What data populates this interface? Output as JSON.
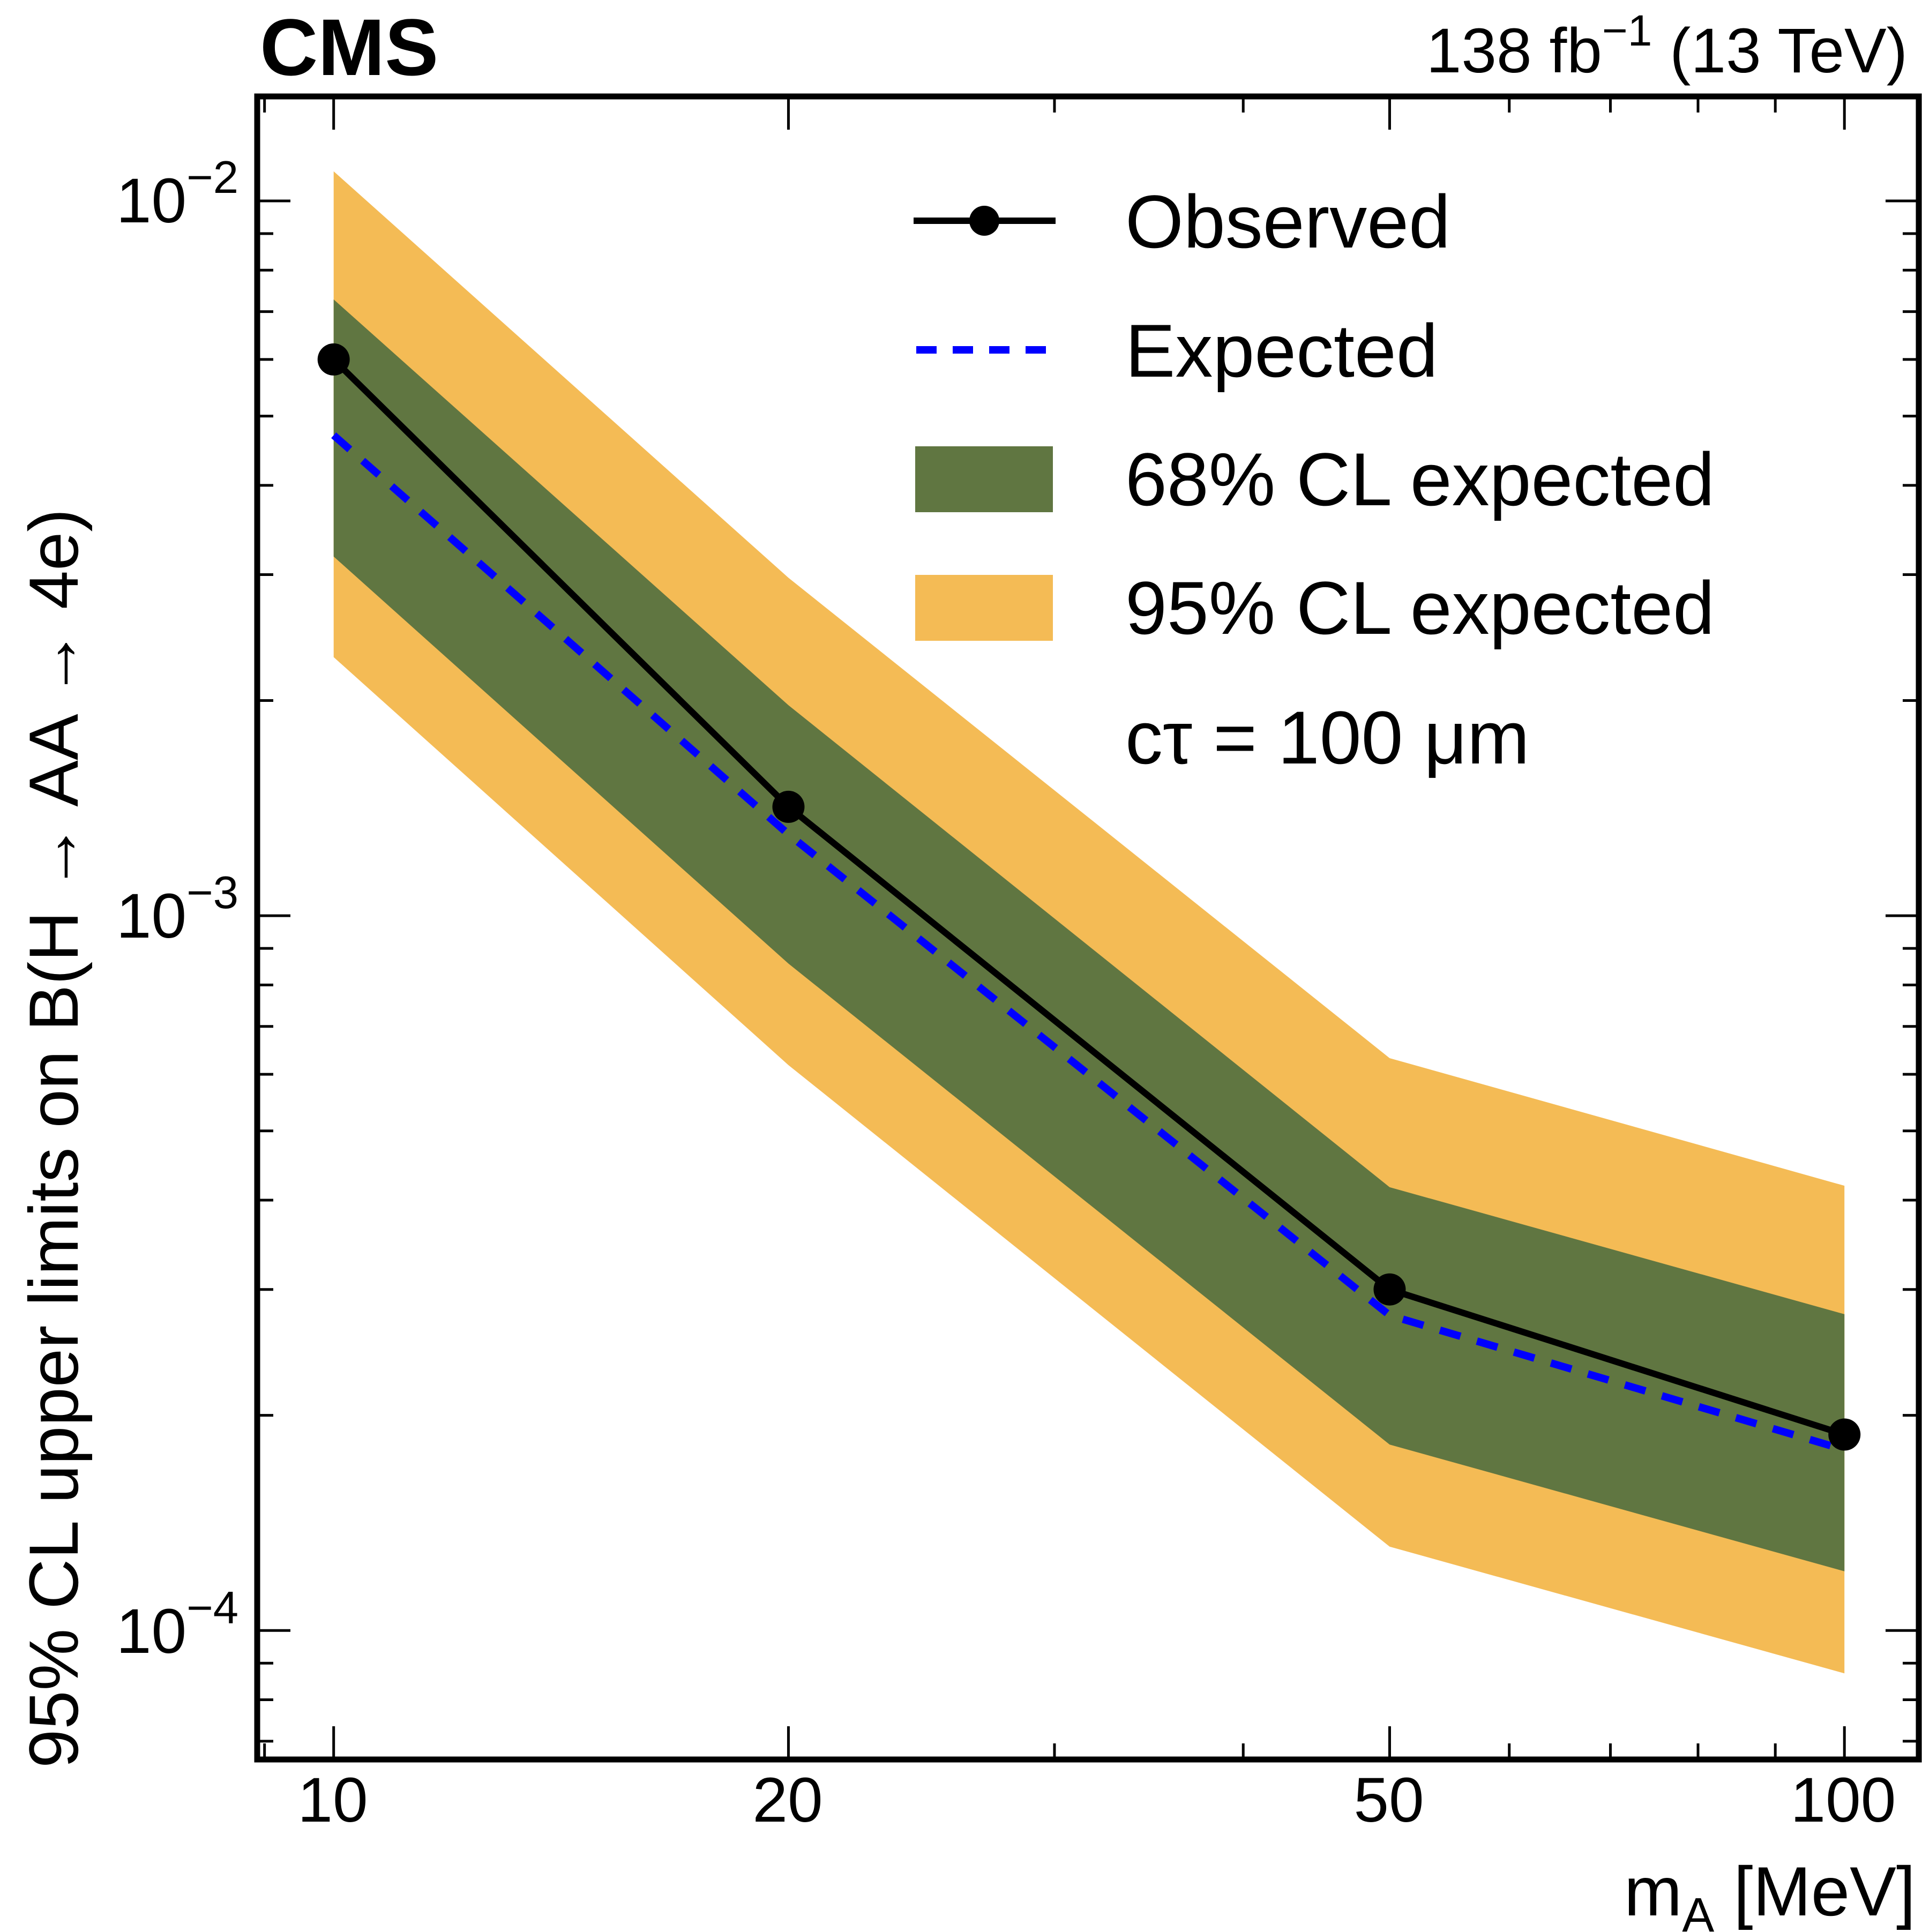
{
  "header": {
    "experiment": "CMS",
    "luminosity": "138 fb",
    "luminosity_exponent": "−1",
    "energy": "(13 TeV)"
  },
  "chart_data": {
    "type": "line",
    "title": "",
    "xlabel": "m_A [MeV]",
    "xlabel_main": "m",
    "xlabel_sub": "A",
    "xlabel_unit": "[MeV]",
    "ylabel": "95% CL upper limits on B(H → AA → 4e)",
    "xscale": "log",
    "yscale": "log",
    "xlim": [
      8.9,
      112
    ],
    "ylim": [
      6.6e-05,
      0.014
    ],
    "x_ticks": [
      10,
      20,
      50,
      100
    ],
    "x_tick_labels": [
      "10",
      "20",
      "50",
      "100"
    ],
    "y_ticks": [
      0.01,
      0.001,
      0.0001
    ],
    "y_tick_labels": [
      {
        "base": "10",
        "exp": "−2"
      },
      {
        "base": "10",
        "exp": "−3"
      },
      {
        "base": "10",
        "exp": "−4"
      }
    ],
    "grid": false,
    "legend_position": "top-right",
    "annotation": "cτ = 100 μm",
    "x": [
      10,
      20,
      50,
      100
    ],
    "series": [
      {
        "name": "Observed",
        "style": "solid-line-with-markers",
        "color": "#000000",
        "values": [
          0.006,
          0.00142,
          0.0003,
          0.000188
        ]
      },
      {
        "name": "Expected",
        "style": "dashed-line",
        "color": "#0000ff",
        "values": [
          0.0047,
          0.0013,
          0.000276,
          0.000179
        ]
      }
    ],
    "bands": [
      {
        "name": "95% CL expected",
        "color": "#f4bb55",
        "lower": [
          0.0023,
          0.000618,
          0.000131,
          8.71e-05
        ],
        "upper": [
          0.011,
          0.00297,
          0.000632,
          0.000419
        ]
      },
      {
        "name": "68% CL expected",
        "color": "#607641",
        "lower": [
          0.00318,
          0.000857,
          0.000182,
          0.000121
        ],
        "upper": [
          0.00728,
          0.00197,
          0.000417,
          0.000277
        ]
      }
    ],
    "legend": [
      {
        "label": "Observed",
        "kind": "line-marker",
        "color": "#000000"
      },
      {
        "label": "Expected",
        "kind": "dashed",
        "color": "#0000ff"
      },
      {
        "label": "68% CL expected",
        "kind": "box",
        "color": "#607641"
      },
      {
        "label": "95% CL expected",
        "kind": "box",
        "color": "#f4bb55"
      }
    ]
  }
}
